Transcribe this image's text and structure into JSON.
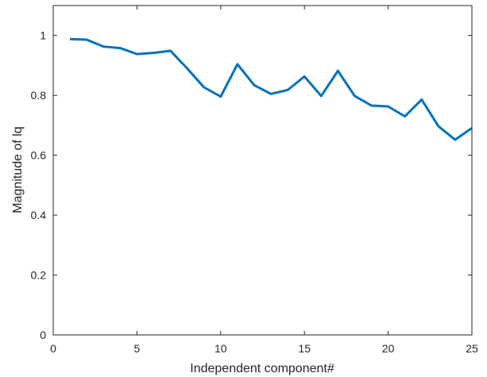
{
  "chart_data": {
    "type": "line",
    "title": "",
    "xlabel": "Independent component#",
    "ylabel": "Magnitude of lq",
    "xlim": [
      0,
      25
    ],
    "ylim": [
      0,
      1.1
    ],
    "xticks": [
      0,
      5,
      10,
      15,
      20,
      25
    ],
    "xtick_labels": [
      "0",
      "5",
      "10",
      "15",
      "20",
      "25"
    ],
    "yticks": [
      0,
      0.2,
      0.4,
      0.6,
      0.8,
      1
    ],
    "ytick_labels": [
      "0",
      "0.2",
      "0.4",
      "0.6",
      "0.8",
      "1"
    ],
    "grid": false,
    "legend": "none",
    "series": [
      {
        "color": "#0072BD",
        "x": [
          1,
          2,
          3,
          4,
          5,
          6,
          7,
          8,
          9,
          10,
          11,
          12,
          13,
          14,
          15,
          16,
          17,
          18,
          19,
          20,
          21,
          22,
          23,
          24,
          25
        ],
        "y": [
          0.988,
          0.986,
          0.963,
          0.958,
          0.938,
          0.942,
          0.949,
          0.89,
          0.827,
          0.796,
          0.904,
          0.834,
          0.805,
          0.818,
          0.863,
          0.798,
          0.882,
          0.798,
          0.766,
          0.763,
          0.73,
          0.786,
          0.697,
          0.652,
          0.691
        ]
      }
    ]
  }
}
